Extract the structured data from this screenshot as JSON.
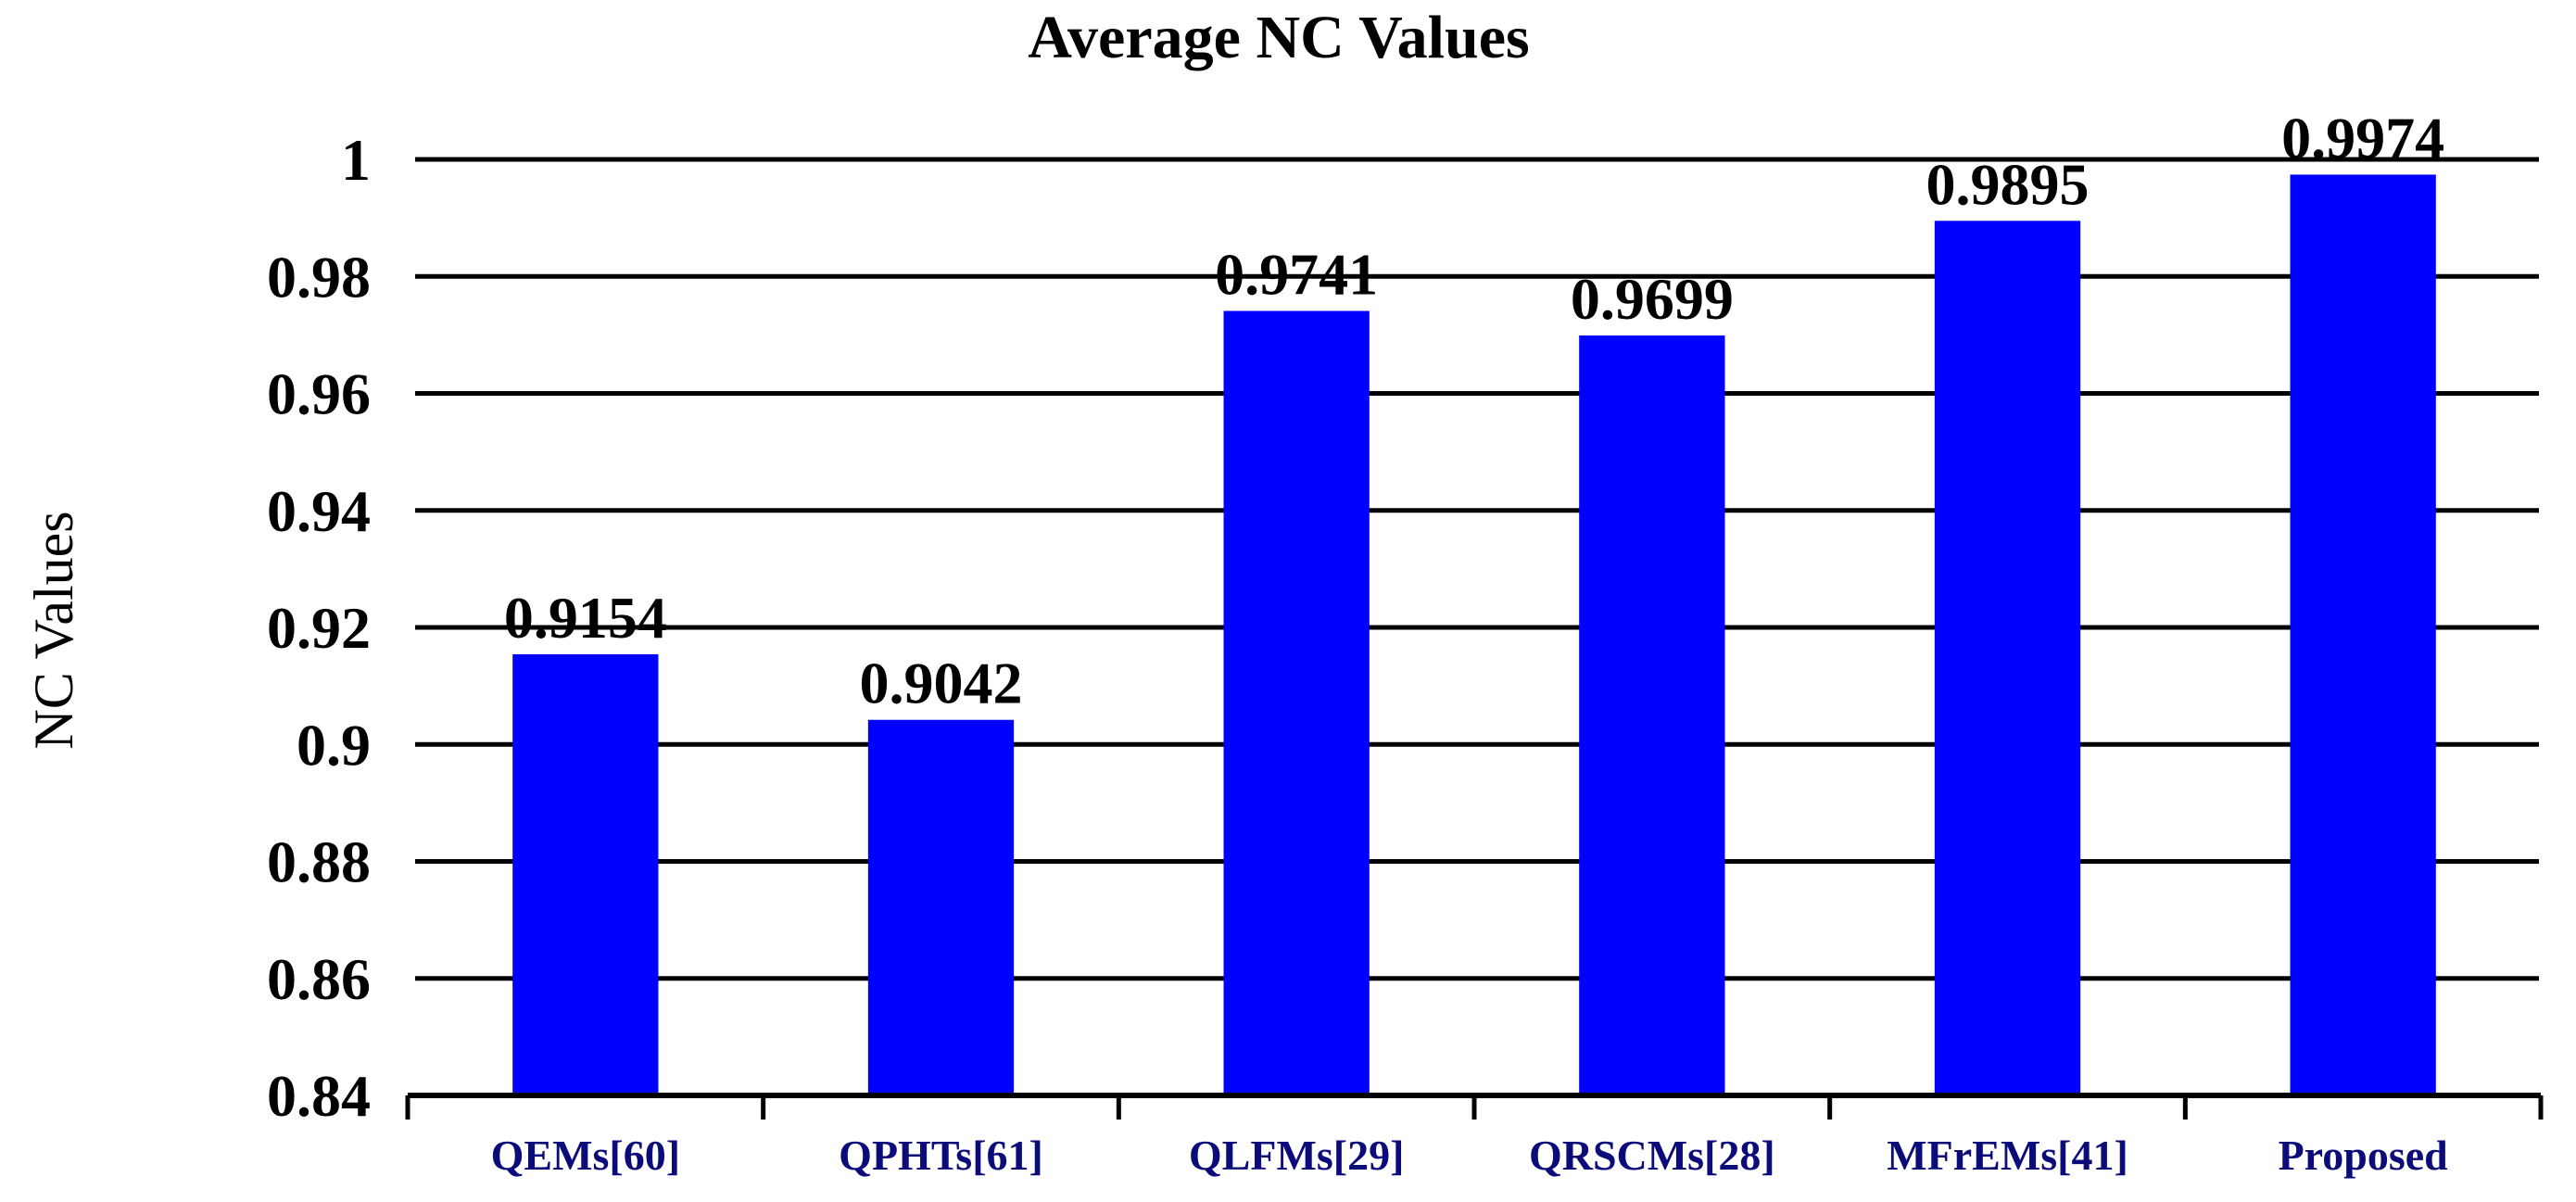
{
  "chart_data": {
    "type": "bar",
    "title": "Average NC Values",
    "xlabel": "",
    "ylabel": "NC Values",
    "categories": [
      "QEMs[60]",
      "QPHTs[61]",
      "QLFMs[29]",
      "QRSCMs[28]",
      "MFrEMs[41]",
      "Proposed"
    ],
    "values": [
      0.9154,
      0.9042,
      0.9741,
      0.9699,
      0.9895,
      0.9974
    ],
    "data_labels": [
      "0.9154",
      "0.9042",
      "0.9741",
      "0.9699",
      "0.9895",
      "0.9974"
    ],
    "ylim": [
      0.84,
      1.0
    ],
    "yticks": [
      0.84,
      0.86,
      0.88,
      0.9,
      0.92,
      0.94,
      0.96,
      0.98,
      1.0
    ],
    "ytick_labels": [
      "0.84",
      "0.86",
      "0.88",
      "0.9",
      "0.92",
      "0.94",
      "0.96",
      "0.98",
      "1"
    ],
    "grid": true,
    "legend": "none",
    "bar_color": "#0000ff"
  }
}
